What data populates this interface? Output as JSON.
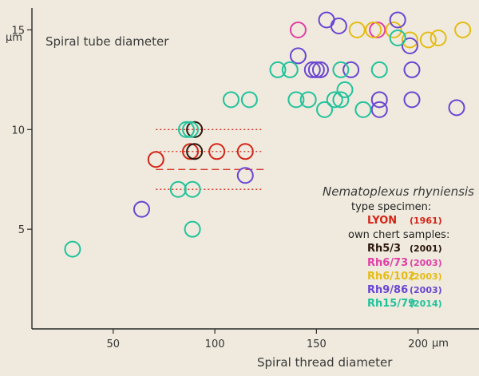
{
  "chart_data": {
    "type": "scatter",
    "title": "Spiral tube diameter",
    "xlabel": "Spiral thread diameter",
    "ylabel": "",
    "x_unit": "µm",
    "y_unit": "µm",
    "xlim": [
      10,
      230
    ],
    "ylim": [
      0,
      16.5
    ],
    "x_ticks": [
      50,
      100,
      150,
      200
    ],
    "y_ticks": [
      5,
      10,
      15
    ],
    "grid": false,
    "legend": {
      "placement": "right",
      "title": "Nematoplexus rhyniensis",
      "type_heading": "type specimen:",
      "own_heading": "own chert samples:"
    },
    "series": [
      {
        "name": "LYON",
        "year": "(1961)",
        "color": "#d42418",
        "points": [
          [
            71,
            8.5
          ],
          [
            88,
            8.9
          ],
          [
            101,
            8.9
          ],
          [
            115,
            8.9
          ]
        ]
      },
      {
        "name": "Rh5/3",
        "year": "(2001)",
        "color": "#2b160c",
        "points": [
          [
            90,
            10
          ],
          [
            90,
            8.9
          ]
        ]
      },
      {
        "name": "Rh6/73",
        "year": "(2003)",
        "color": "#e03fa6",
        "points": [
          [
            141,
            15
          ],
          [
            180,
            15
          ]
        ]
      },
      {
        "name": "Rh6/102",
        "year": "(2003)",
        "color": "#e5bc15",
        "points": [
          [
            170,
            15
          ],
          [
            178,
            15
          ],
          [
            188,
            15
          ],
          [
            196,
            14.5
          ],
          [
            205,
            14.5
          ],
          [
            210,
            14.6
          ],
          [
            222,
            15
          ]
        ]
      },
      {
        "name": "Rh9/86",
        "year": "(2003)",
        "color": "#6a45d3",
        "points": [
          [
            64,
            6
          ],
          [
            115,
            7.7
          ],
          [
            141,
            13.7
          ],
          [
            148,
            13
          ],
          [
            150,
            13
          ],
          [
            152,
            13
          ],
          [
            155,
            15.5
          ],
          [
            161,
            15.2
          ],
          [
            167,
            13
          ],
          [
            181,
            11.5
          ],
          [
            181,
            11
          ],
          [
            190,
            15.5
          ],
          [
            196,
            14.2
          ],
          [
            197,
            13
          ],
          [
            197,
            11.5
          ],
          [
            219,
            11.1
          ]
        ]
      },
      {
        "name": "Rh15/79",
        "year": "(2014)",
        "color": "#22c29c",
        "points": [
          [
            30,
            4
          ],
          [
            82,
            7
          ],
          [
            86,
            10
          ],
          [
            88,
            10
          ],
          [
            89,
            7
          ],
          [
            89,
            5
          ],
          [
            108,
            11.5
          ],
          [
            117,
            11.5
          ],
          [
            131,
            13
          ],
          [
            137,
            13
          ],
          [
            140,
            11.5
          ],
          [
            146,
            11.5
          ],
          [
            154,
            11
          ],
          [
            159,
            11.5
          ],
          [
            162,
            13
          ],
          [
            162,
            11.5
          ],
          [
            164,
            12
          ],
          [
            173,
            11
          ],
          [
            181,
            13
          ],
          [
            190,
            14.6
          ]
        ]
      }
    ],
    "lyon_bands": {
      "color": "#d42418",
      "dashed": [
        8
      ],
      "dotted": [
        10,
        8.9,
        7
      ]
    }
  }
}
